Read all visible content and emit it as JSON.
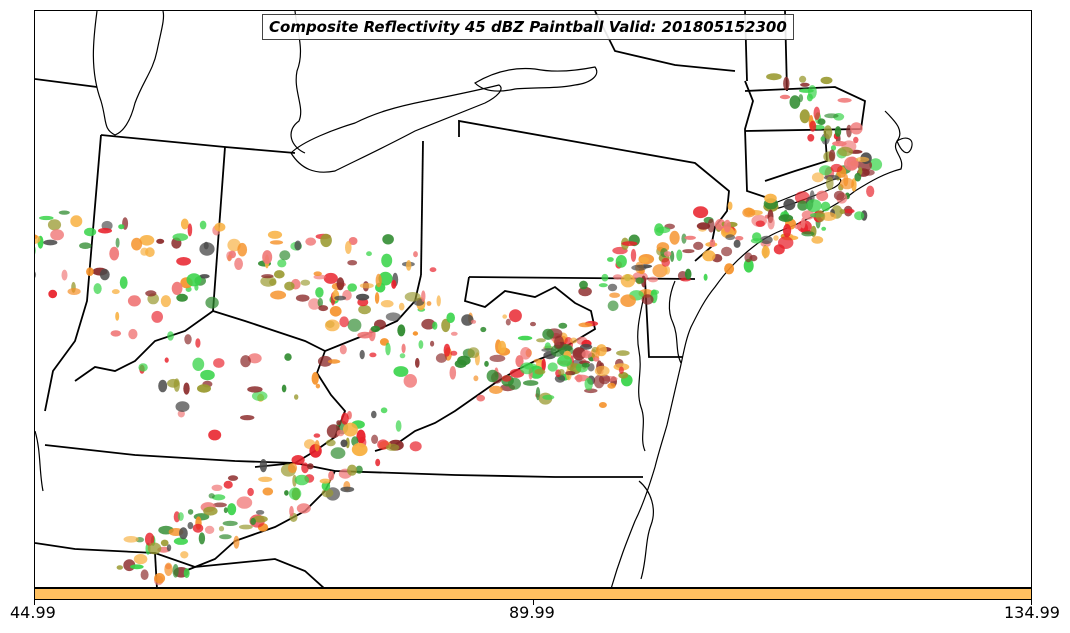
{
  "title": "Composite Reflectivity 45 dBZ Paintball Valid: 201805152300",
  "colorbar": {
    "color": "#ffc060",
    "ticks": [
      {
        "label": "44.99"
      },
      {
        "label": "89.99"
      },
      {
        "label": "134.99"
      }
    ]
  },
  "paint_colors": [
    "#e8202a",
    "#f59026",
    "#39d44a",
    "#2f8b2f",
    "#8b2a2a",
    "#4a4a4a",
    "#9a9a30",
    "#f8b040",
    "#f07878"
  ]
}
